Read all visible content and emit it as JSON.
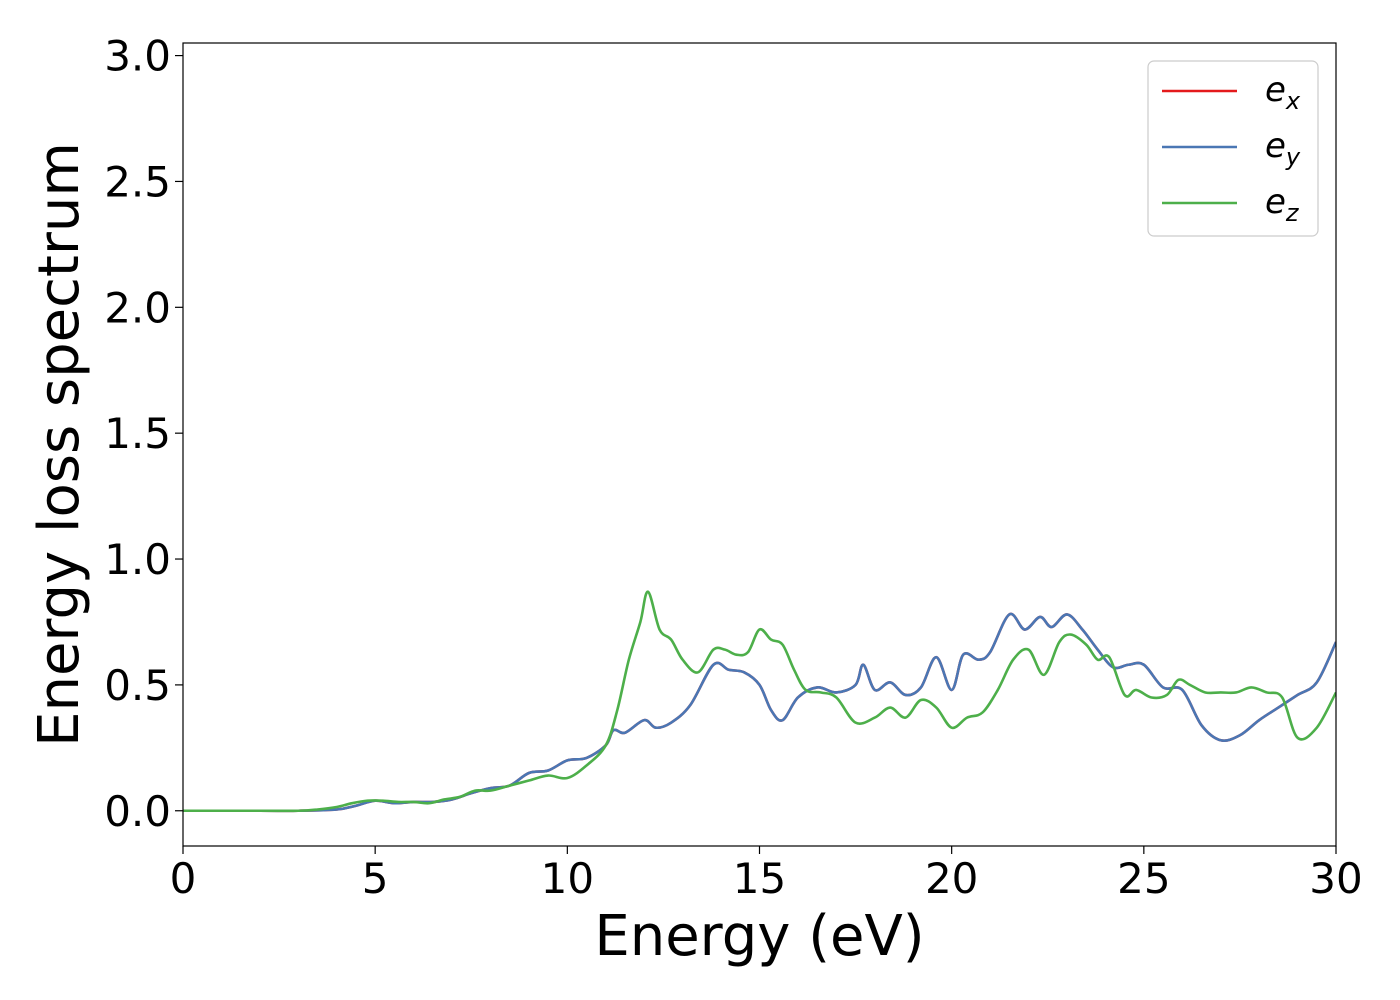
{
  "chart_data": {
    "type": "line",
    "xlabel": "Energy (eV)",
    "ylabel": "Energy loss spectrum",
    "xlim": [
      0,
      30
    ],
    "ylim": [
      -0.14,
      3.05
    ],
    "xticks": [
      0,
      5,
      10,
      15,
      20,
      25,
      30
    ],
    "xtick_labels": [
      "0",
      "5",
      "10",
      "15",
      "20",
      "25",
      "30"
    ],
    "yticks": [
      0.0,
      0.5,
      1.0,
      1.5,
      2.0,
      2.5,
      3.0
    ],
    "ytick_labels": [
      "0.0",
      "0.5",
      "1.0",
      "1.5",
      "2.0",
      "2.5",
      "3.0"
    ],
    "grid": false,
    "legend_position": "top-right",
    "series": [
      {
        "name": "ex",
        "sub": "x",
        "color": "#e41a1c",
        "x": [
          0,
          2,
          3,
          4,
          4.5,
          5,
          5.5,
          6,
          6.5,
          7,
          7.5,
          8,
          8.5,
          9,
          9.5,
          10,
          10.5,
          11,
          11.2,
          11.5,
          12,
          12.3,
          12.7,
          13.2,
          13.8,
          14.2,
          14.6,
          15,
          15.3,
          15.6,
          16,
          16.5,
          17,
          17.5,
          17.7,
          18,
          18.4,
          18.8,
          19.2,
          19.6,
          20,
          20.3,
          20.7,
          21,
          21.5,
          21.9,
          22.3,
          22.6,
          23,
          23.4,
          23.8,
          24.2,
          24.6,
          25,
          25.5,
          26,
          26.5,
          27,
          27.5,
          28,
          28.5,
          29,
          29.5,
          30
        ],
        "values": [
          0,
          0,
          0,
          0.005,
          0.02,
          0.04,
          0.03,
          0.035,
          0.035,
          0.045,
          0.07,
          0.09,
          0.1,
          0.15,
          0.16,
          0.2,
          0.21,
          0.26,
          0.32,
          0.31,
          0.36,
          0.33,
          0.35,
          0.42,
          0.58,
          0.56,
          0.55,
          0.5,
          0.4,
          0.36,
          0.45,
          0.49,
          0.47,
          0.5,
          0.58,
          0.48,
          0.51,
          0.46,
          0.49,
          0.61,
          0.48,
          0.62,
          0.6,
          0.63,
          0.78,
          0.72,
          0.77,
          0.73,
          0.78,
          0.72,
          0.64,
          0.57,
          0.58,
          0.58,
          0.49,
          0.48,
          0.34,
          0.28,
          0.3,
          0.36,
          0.41,
          0.46,
          0.51,
          0.67
        ]
      },
      {
        "name": "ey",
        "sub": "y",
        "color": "#4a77b4",
        "x": [
          0,
          2,
          3,
          4,
          4.5,
          5,
          5.5,
          6,
          6.5,
          7,
          7.5,
          8,
          8.5,
          9,
          9.5,
          10,
          10.5,
          11,
          11.2,
          11.5,
          12,
          12.3,
          12.7,
          13.2,
          13.8,
          14.2,
          14.6,
          15,
          15.3,
          15.6,
          16,
          16.5,
          17,
          17.5,
          17.7,
          18,
          18.4,
          18.8,
          19.2,
          19.6,
          20,
          20.3,
          20.7,
          21,
          21.5,
          21.9,
          22.3,
          22.6,
          23,
          23.4,
          23.8,
          24.2,
          24.6,
          25,
          25.5,
          26,
          26.5,
          27,
          27.5,
          28,
          28.5,
          29,
          29.5,
          30
        ],
        "values": [
          0,
          0,
          0,
          0.005,
          0.02,
          0.04,
          0.03,
          0.035,
          0.035,
          0.045,
          0.07,
          0.09,
          0.1,
          0.15,
          0.16,
          0.2,
          0.21,
          0.26,
          0.32,
          0.31,
          0.36,
          0.33,
          0.35,
          0.42,
          0.58,
          0.56,
          0.55,
          0.5,
          0.4,
          0.36,
          0.45,
          0.49,
          0.47,
          0.5,
          0.58,
          0.48,
          0.51,
          0.46,
          0.49,
          0.61,
          0.48,
          0.62,
          0.6,
          0.63,
          0.78,
          0.72,
          0.77,
          0.73,
          0.78,
          0.72,
          0.64,
          0.57,
          0.58,
          0.58,
          0.49,
          0.48,
          0.34,
          0.28,
          0.3,
          0.36,
          0.41,
          0.46,
          0.51,
          0.67
        ]
      },
      {
        "name": "ez",
        "sub": "z",
        "color": "#4daf4a",
        "x": [
          0,
          2,
          3,
          3.5,
          4,
          4.4,
          4.8,
          5.2,
          5.6,
          6,
          6.4,
          6.8,
          7.2,
          7.6,
          8,
          8.5,
          9,
          9.5,
          10,
          10.5,
          11,
          11.3,
          11.6,
          11.9,
          12.1,
          12.4,
          12.7,
          13,
          13.4,
          13.8,
          14.1,
          14.4,
          14.7,
          15,
          15.3,
          15.6,
          15.9,
          16.2,
          16.6,
          17,
          17.5,
          18,
          18.4,
          18.8,
          19.2,
          19.6,
          20,
          20.4,
          20.8,
          21.2,
          21.6,
          22,
          22.4,
          22.8,
          23.1,
          23.5,
          23.8,
          24.1,
          24.5,
          24.8,
          25.2,
          25.6,
          25.9,
          26.2,
          26.6,
          27,
          27.4,
          27.8,
          28.2,
          28.6,
          29,
          29.5,
          30
        ],
        "values": [
          0,
          0,
          0,
          0.005,
          0.015,
          0.03,
          0.04,
          0.04,
          0.035,
          0.035,
          0.03,
          0.045,
          0.055,
          0.08,
          0.08,
          0.1,
          0.12,
          0.14,
          0.13,
          0.18,
          0.26,
          0.4,
          0.6,
          0.75,
          0.87,
          0.72,
          0.68,
          0.6,
          0.55,
          0.64,
          0.64,
          0.62,
          0.63,
          0.72,
          0.68,
          0.66,
          0.56,
          0.48,
          0.47,
          0.45,
          0.35,
          0.37,
          0.41,
          0.37,
          0.44,
          0.41,
          0.33,
          0.37,
          0.39,
          0.48,
          0.6,
          0.64,
          0.54,
          0.67,
          0.7,
          0.66,
          0.6,
          0.61,
          0.46,
          0.48,
          0.45,
          0.46,
          0.52,
          0.5,
          0.47,
          0.47,
          0.47,
          0.49,
          0.47,
          0.45,
          0.29,
          0.33,
          0.47
        ]
      }
    ]
  }
}
